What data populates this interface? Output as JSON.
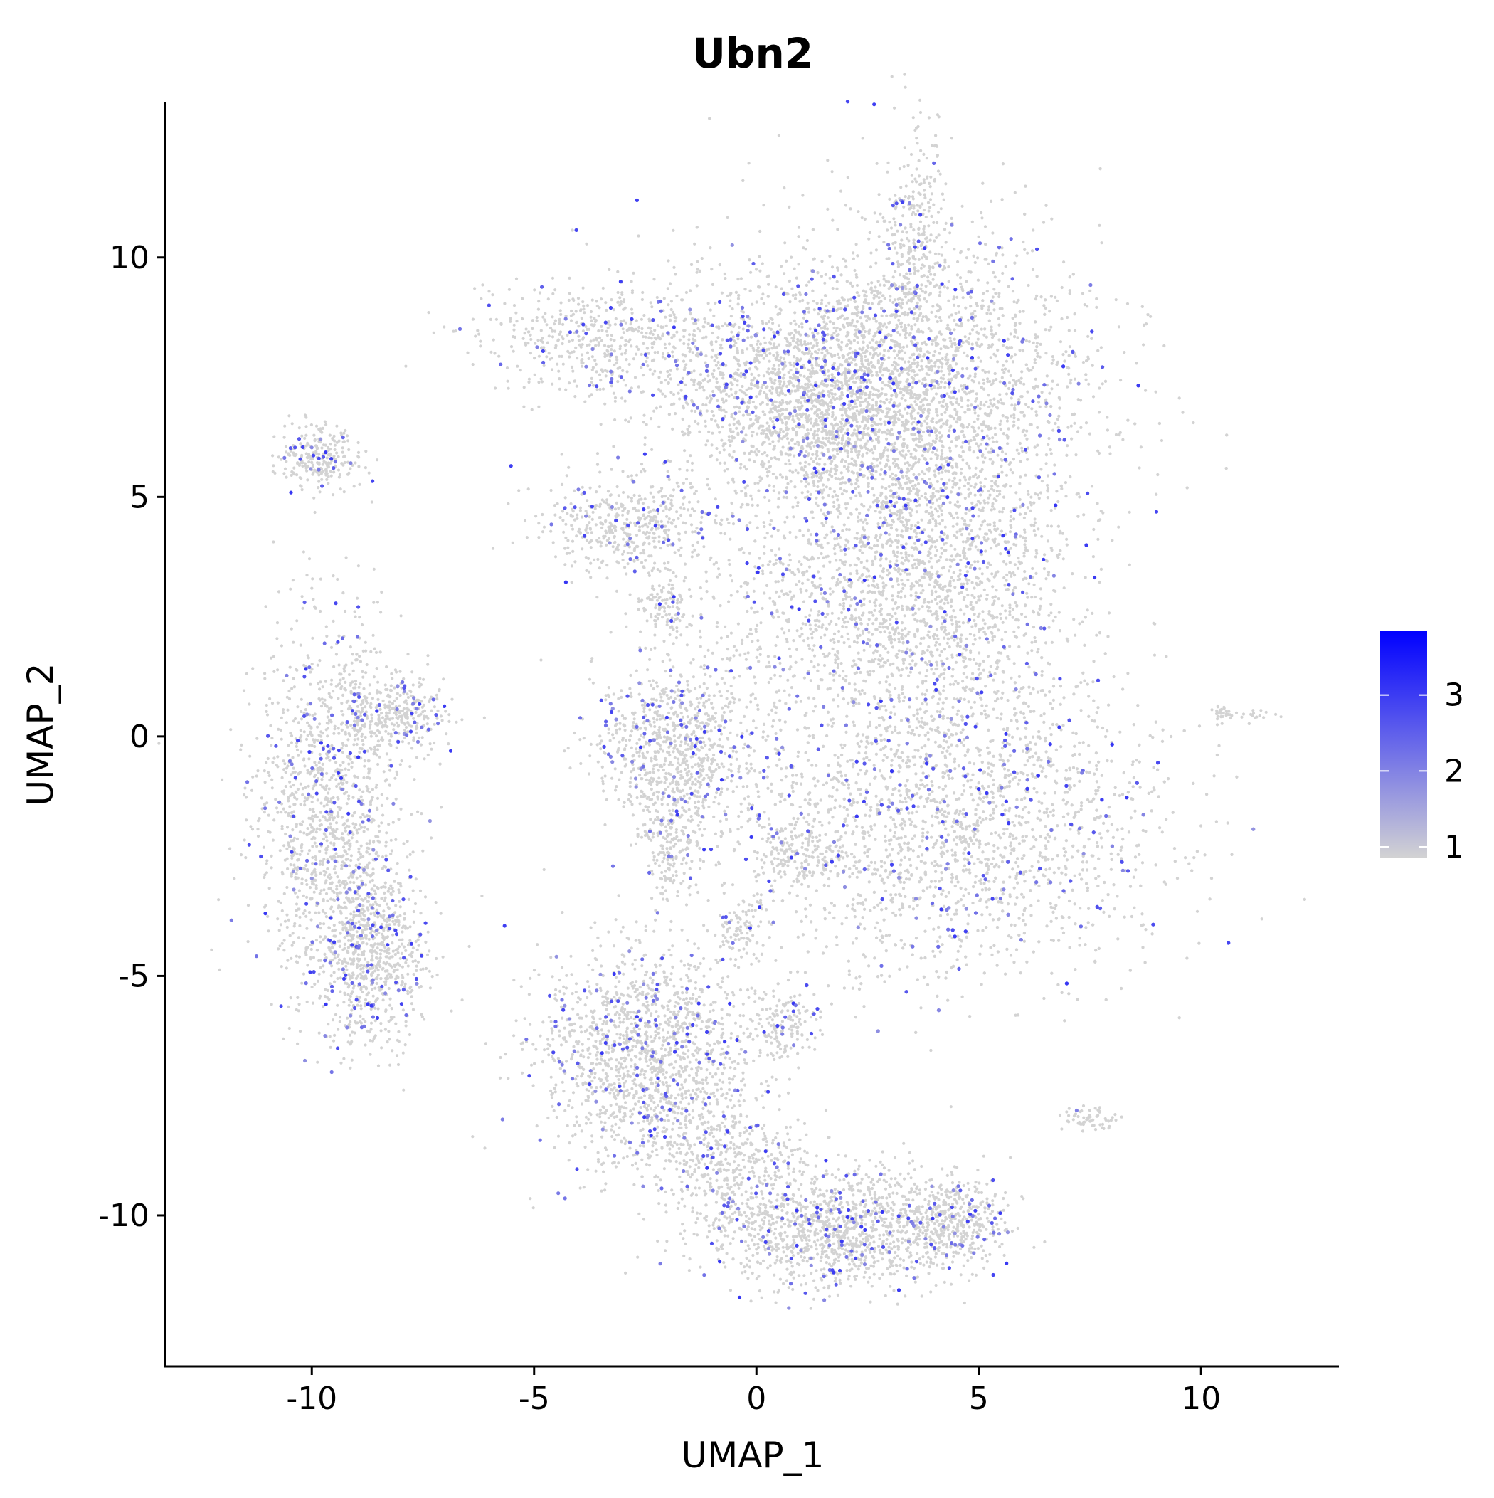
{
  "chart_data": {
    "type": "scatter",
    "title": "Ubn2",
    "xlabel": "UMAP_1",
    "ylabel": "UMAP_2",
    "xlim": [
      -13.3,
      13.1
    ],
    "ylim": [
      -13.15,
      13.25
    ],
    "xticks": [
      -10,
      -5,
      0,
      5,
      10
    ],
    "yticks": [
      -10,
      -5,
      0,
      5,
      10
    ],
    "xtick_labels": [
      "-10",
      "-5",
      "0",
      "5",
      "10"
    ],
    "ytick_labels": [
      "-10",
      "-5",
      "0",
      "5",
      "10"
    ],
    "grid": false,
    "legend": {
      "placement": "right",
      "type": "colorbar",
      "range": [
        0.85,
        3.85
      ],
      "ticks": [
        1,
        2,
        3
      ],
      "tick_labels": [
        "1",
        "2",
        "3"
      ],
      "low_color": "#d3d3d3",
      "high_color": "#0000ff"
    },
    "point_color_base": "#d3d3d3",
    "point_color_high": "#0000ff",
    "clusters": [
      {
        "id": "c1",
        "cx": 3.3,
        "cy": 7.2,
        "sx": 2.2,
        "sy": 1.6,
        "n": 3600,
        "frac_expr": 0.07
      },
      {
        "id": "c2",
        "cx": 1.3,
        "cy": 7.0,
        "sx": 1.6,
        "sy": 1.0,
        "n": 1500,
        "frac_expr": 0.07
      },
      {
        "id": "c3",
        "cx": -3.2,
        "cy": 8.3,
        "sx": 1.5,
        "sy": 0.6,
        "n": 600,
        "frac_expr": 0.06
      },
      {
        "id": "c4",
        "cx": 3.6,
        "cy": 10.2,
        "sx": 0.35,
        "sy": 1.2,
        "n": 300,
        "frac_expr": 0.05
      },
      {
        "id": "c5",
        "cx": 4.0,
        "cy": 3.2,
        "sx": 1.5,
        "sy": 1.5,
        "n": 1600,
        "frac_expr": 0.07
      },
      {
        "id": "c6",
        "cx": -2.8,
        "cy": 4.4,
        "sx": 1.0,
        "sy": 0.5,
        "n": 500,
        "frac_expr": 0.06
      },
      {
        "id": "c7",
        "cx": -2.1,
        "cy": 2.7,
        "sx": 0.3,
        "sy": 0.35,
        "n": 120,
        "frac_expr": 0.04
      },
      {
        "id": "c8",
        "cx": 4.4,
        "cy": -1.8,
        "sx": 2.4,
        "sy": 1.6,
        "n": 4200,
        "frac_expr": 0.08
      },
      {
        "id": "c9",
        "cx": 0.9,
        "cy": -2.5,
        "sx": 0.4,
        "sy": 0.3,
        "n": 150,
        "frac_expr": 0.04
      },
      {
        "id": "c10",
        "cx": -1.8,
        "cy": -0.3,
        "sx": 0.9,
        "sy": 0.9,
        "n": 900,
        "frac_expr": 0.07
      },
      {
        "id": "c11",
        "cx": -1.9,
        "cy": -2.4,
        "sx": 0.3,
        "sy": 0.5,
        "n": 150,
        "frac_expr": 0.05
      },
      {
        "id": "c12",
        "cx": -9.6,
        "cy": -1.6,
        "sx": 0.8,
        "sy": 1.9,
        "n": 1400,
        "frac_expr": 0.09
      },
      {
        "id": "c13",
        "cx": -8.0,
        "cy": 0.5,
        "sx": 0.6,
        "sy": 0.4,
        "n": 300,
        "frac_expr": 0.07
      },
      {
        "id": "c14",
        "cx": -8.6,
        "cy": -4.6,
        "sx": 0.6,
        "sy": 0.9,
        "n": 700,
        "frac_expr": 0.09
      },
      {
        "id": "c15",
        "cx": -9.8,
        "cy": 5.8,
        "sx": 0.45,
        "sy": 0.3,
        "n": 260,
        "frac_expr": 0.07
      },
      {
        "id": "c16",
        "cx": -2.4,
        "cy": -6.7,
        "sx": 1.2,
        "sy": 1.1,
        "n": 1600,
        "frac_expr": 0.08
      },
      {
        "id": "c17",
        "cx": 1.7,
        "cy": -10.3,
        "sx": 1.4,
        "sy": 0.6,
        "n": 1300,
        "frac_expr": 0.08
      },
      {
        "id": "c18",
        "cx": 4.5,
        "cy": -10.1,
        "sx": 0.6,
        "sy": 0.45,
        "n": 400,
        "frac_expr": 0.07
      },
      {
        "id": "c19",
        "cx": -0.6,
        "cy": -8.9,
        "sx": 0.9,
        "sy": 0.6,
        "n": 400,
        "frac_expr": 0.06
      },
      {
        "id": "c20",
        "cx": 0.6,
        "cy": -6.0,
        "sx": 0.4,
        "sy": 0.4,
        "n": 150,
        "frac_expr": 0.05
      },
      {
        "id": "c21",
        "cx": -0.3,
        "cy": -4.0,
        "sx": 0.3,
        "sy": 0.3,
        "n": 100,
        "frac_expr": 0.04
      },
      {
        "id": "c22",
        "cx": 1.3,
        "cy": 2.4,
        "sx": 1.4,
        "sy": 1.4,
        "n": 500,
        "frac_expr": 0.06
      },
      {
        "id": "c23",
        "cx": 7.5,
        "cy": -8.0,
        "sx": 0.3,
        "sy": 0.15,
        "n": 60,
        "frac_expr": 0.05
      },
      {
        "id": "c24",
        "cx": 10.4,
        "cy": 0.5,
        "sx": 0.1,
        "sy": 0.1,
        "n": 25,
        "frac_expr": 0.0
      },
      {
        "id": "c25",
        "cx": 11.2,
        "cy": 0.45,
        "sx": 0.3,
        "sy": 0.05,
        "n": 18,
        "frac_expr": 0.0
      }
    ]
  }
}
